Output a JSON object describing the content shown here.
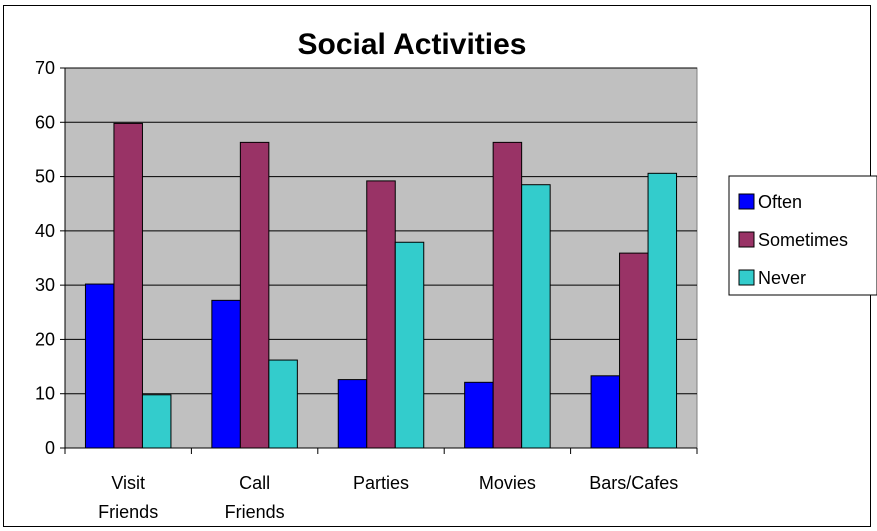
{
  "chart_data": {
    "type": "bar",
    "title": "Social Activities",
    "xlabel": "",
    "ylabel": "",
    "ylim": [
      0,
      70
    ],
    "yticks": [
      0,
      10,
      20,
      30,
      40,
      50,
      60,
      70
    ],
    "grid": true,
    "legend_position": "right",
    "categories": [
      [
        "Visit",
        "Friends"
      ],
      [
        "Call",
        "Friends"
      ],
      [
        "Parties"
      ],
      [
        "Movies"
      ],
      [
        "Bars/Cafes"
      ]
    ],
    "series": [
      {
        "name": "Often",
        "color": "#0000ff",
        "values": [
          30.2,
          27.2,
          12.6,
          12.1,
          13.3
        ]
      },
      {
        "name": "Sometimes",
        "color": "#993366",
        "values": [
          59.8,
          56.3,
          49.2,
          56.3,
          35.9
        ]
      },
      {
        "name": "Never",
        "color": "#33cccc",
        "values": [
          9.8,
          16.2,
          37.9,
          48.5,
          50.6
        ]
      }
    ],
    "plot_background": "#c0c0c0"
  }
}
